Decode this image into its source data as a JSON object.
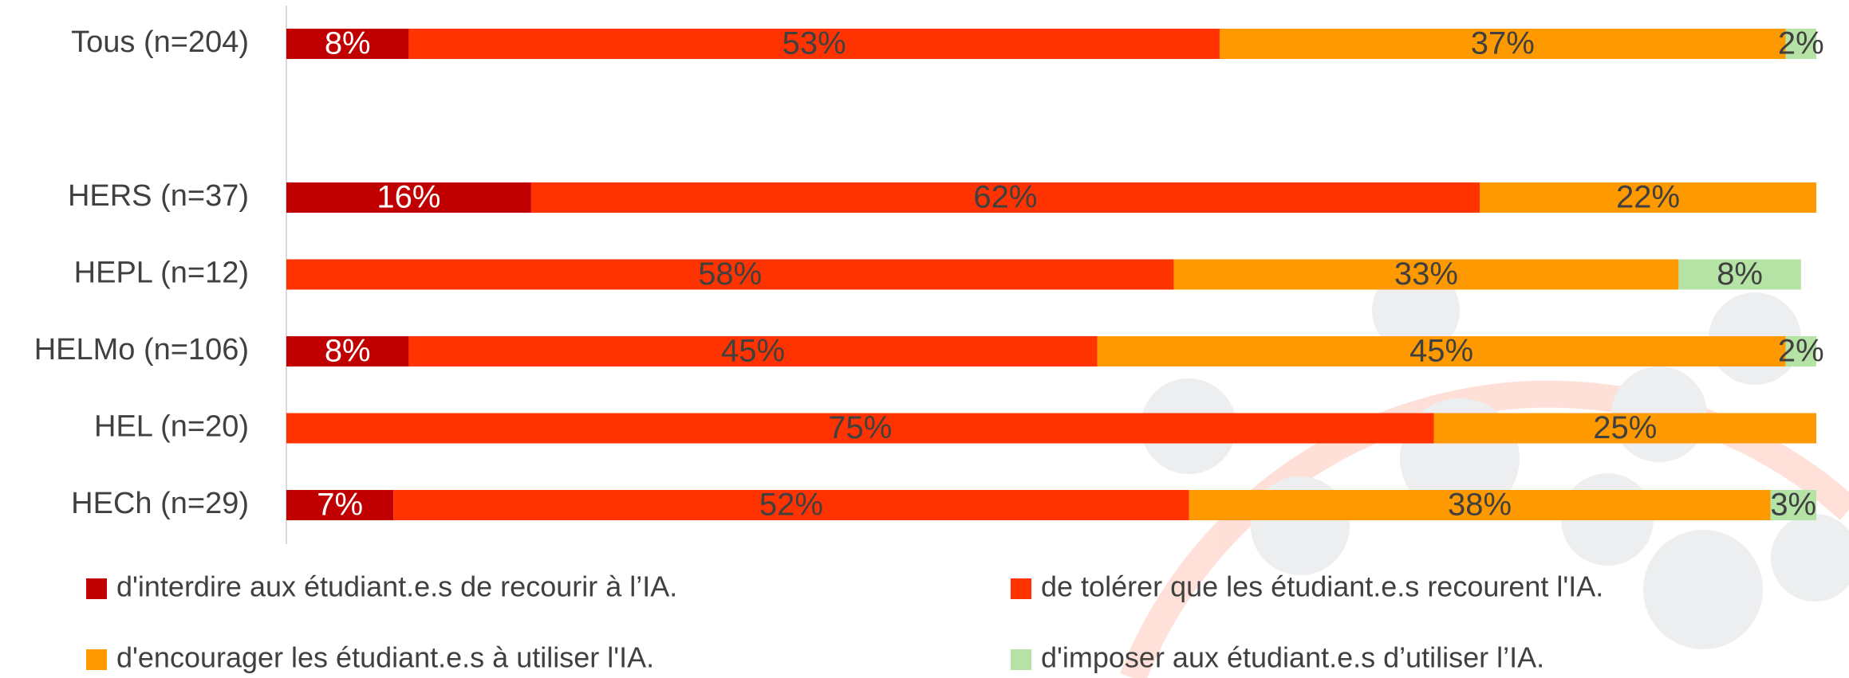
{
  "chart_data": {
    "type": "stacked-bar-horizontal",
    "categories": [
      "Tous (n=204)",
      null,
      "HERS (n=37)",
      "HEPL (n=12)",
      "HELMo (n=106)",
      "HEL (n=20)",
      "HECh (n=29)"
    ],
    "xlim": [
      0,
      100
    ],
    "series": [
      {
        "name": "d'interdire aux étudiant.e.s de recourir à l’IA.",
        "color": "#c00000",
        "label_color": "#ffffff",
        "values": [
          8,
          null,
          16,
          null,
          8,
          null,
          7
        ],
        "value_labels": [
          "8%",
          null,
          "16%",
          null,
          "8%",
          null,
          "7%"
        ]
      },
      {
        "name": "de tolérer que les étudiant.e.s recourent l'IA.",
        "color": "#ff3300",
        "label_color": "#404040",
        "values": [
          53,
          null,
          62,
          58,
          45,
          75,
          52
        ],
        "value_labels": [
          "53%",
          null,
          "62%",
          "58%",
          "45%",
          "75%",
          "52%"
        ]
      },
      {
        "name": "d'encourager les étudiant.e.s à utiliser l'IA.",
        "color": "#ff9900",
        "label_color": "#404040",
        "values": [
          37,
          null,
          22,
          33,
          45,
          25,
          38
        ],
        "value_labels": [
          "37%",
          null,
          "22%",
          "33%",
          "45%",
          "25%",
          "38%"
        ]
      },
      {
        "name": "d'imposer aux étudiant.e.s d’utiliser l’IA.",
        "color": "#b5e3a5",
        "label_color": "#404040",
        "values": [
          2,
          null,
          null,
          8,
          2,
          null,
          3
        ],
        "value_labels": [
          "2%",
          null,
          null,
          "8%",
          "2%",
          null,
          "3%"
        ]
      }
    ]
  }
}
